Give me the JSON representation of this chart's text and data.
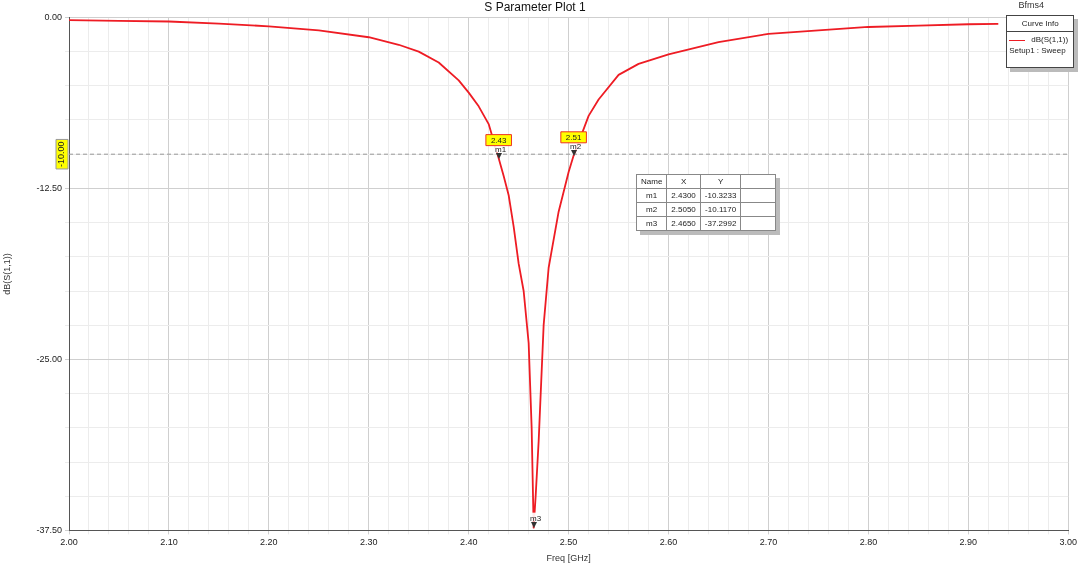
{
  "chart_data": {
    "type": "line",
    "title": "S Parameter Plot 1",
    "xlabel": "Freq [GHz]",
    "ylabel": "dB(S(1,1))",
    "legend_title": "Curve Info",
    "legend": "top right",
    "grid": true,
    "xlim": [
      2.0,
      3.0
    ],
    "ylim": [
      -37.5,
      0
    ],
    "xticks": [
      {
        "value": 2.0,
        "label": "2.00"
      },
      {
        "value": 2.02,
        "label": null
      },
      {
        "value": 2.04,
        "label": null
      },
      {
        "value": 2.06,
        "label": null
      },
      {
        "value": 2.08,
        "label": null
      },
      {
        "value": 2.1,
        "label": "2.10"
      },
      {
        "value": 2.12,
        "label": null
      },
      {
        "value": 2.14,
        "label": null
      },
      {
        "value": 2.16,
        "label": null
      },
      {
        "value": 2.18,
        "label": null
      },
      {
        "value": 2.2,
        "label": "2.20"
      },
      {
        "value": 2.22,
        "label": null
      },
      {
        "value": 2.24,
        "label": null
      },
      {
        "value": 2.26,
        "label": null
      },
      {
        "value": 2.28,
        "label": null
      },
      {
        "value": 2.3,
        "label": "2.30"
      },
      {
        "value": 2.32,
        "label": null
      },
      {
        "value": 2.34,
        "label": null
      },
      {
        "value": 2.36,
        "label": null
      },
      {
        "value": 2.38,
        "label": null
      },
      {
        "value": 2.4,
        "label": "2.40"
      },
      {
        "value": 2.42,
        "label": null
      },
      {
        "value": 2.44,
        "label": null
      },
      {
        "value": 2.46,
        "label": null
      },
      {
        "value": 2.48,
        "label": null
      },
      {
        "value": 2.5,
        "label": "2.50"
      },
      {
        "value": 2.52,
        "label": null
      },
      {
        "value": 2.54,
        "label": null
      },
      {
        "value": 2.56,
        "label": null
      },
      {
        "value": 2.58,
        "label": null
      },
      {
        "value": 2.6,
        "label": "2.60"
      },
      {
        "value": 2.62,
        "label": null
      },
      {
        "value": 2.64,
        "label": null
      },
      {
        "value": 2.66,
        "label": null
      },
      {
        "value": 2.68,
        "label": null
      },
      {
        "value": 2.7,
        "label": "2.70"
      },
      {
        "value": 2.72,
        "label": null
      },
      {
        "value": 2.74,
        "label": null
      },
      {
        "value": 2.76,
        "label": null
      },
      {
        "value": 2.78,
        "label": null
      },
      {
        "value": 2.8,
        "label": "2.80"
      },
      {
        "value": 2.82,
        "label": null
      },
      {
        "value": 2.84,
        "label": null
      },
      {
        "value": 2.86,
        "label": null
      },
      {
        "value": 2.88,
        "label": null
      },
      {
        "value": 2.9,
        "label": "2.90"
      },
      {
        "value": 2.92,
        "label": null
      },
      {
        "value": 2.94,
        "label": null
      },
      {
        "value": 2.96,
        "label": null
      },
      {
        "value": 2.98,
        "label": null
      },
      {
        "value": 3.0,
        "label": "3.00"
      }
    ],
    "yticks": [
      {
        "value": -37.5,
        "label": "-37.50"
      },
      {
        "value": -35,
        "label": null
      },
      {
        "value": -32.5,
        "label": null
      },
      {
        "value": -30,
        "label": null
      },
      {
        "value": -27.5,
        "label": null
      },
      {
        "value": -25,
        "label": "-25.00"
      },
      {
        "value": -22.5,
        "label": null
      },
      {
        "value": -20,
        "label": null
      },
      {
        "value": -17.5,
        "label": null
      },
      {
        "value": -15,
        "label": null
      },
      {
        "value": -12.5,
        "label": "-12.50"
      },
      {
        "value": -10,
        "label": null
      },
      {
        "value": -7.5,
        "label": null
      },
      {
        "value": -5,
        "label": null
      },
      {
        "value": -2.5,
        "label": null
      },
      {
        "value": 0,
        "label": "0.00"
      }
    ],
    "series": [
      {
        "name": "dB(S(1,1))",
        "color": "#ee1c24",
        "x": [
          2.0,
          2.05,
          2.1,
          2.15,
          2.2,
          2.25,
          2.3,
          2.33,
          2.35,
          2.37,
          2.39,
          2.4,
          2.41,
          2.42,
          2.43,
          2.435,
          2.44,
          2.445,
          2.45,
          2.455,
          2.46,
          2.463,
          2.465,
          2.467,
          2.47,
          2.475,
          2.48,
          2.49,
          2.5,
          2.505,
          2.52,
          2.53,
          2.55,
          2.57,
          2.6,
          2.65,
          2.7,
          2.75,
          2.8,
          2.85,
          2.9,
          2.93
        ],
        "values": [
          -0.2,
          -0.25,
          -0.3,
          -0.45,
          -0.65,
          -0.95,
          -1.45,
          -2.0,
          -2.5,
          -3.3,
          -4.6,
          -5.5,
          -6.5,
          -7.8,
          -10.3,
          -11.6,
          -13.0,
          -15.3,
          -18.0,
          -20.0,
          -23.8,
          -30.0,
          -37.3,
          -35.0,
          -31.0,
          -22.5,
          -18.3,
          -14.2,
          -11.3,
          -10.1,
          -7.2,
          -6.0,
          -4.2,
          -3.4,
          -2.7,
          -1.8,
          -1.2,
          -0.95,
          -0.7,
          -0.6,
          -0.5,
          -0.48
        ]
      }
    ],
    "ref_lines": [
      {
        "axis": "y",
        "value": -10,
        "label": "-10.00"
      }
    ],
    "annotations": [
      "Bfms4",
      "Setup1 : Sweep",
      "Name",
      "X",
      "Y",
      "m1",
      "2.4300",
      "-10.3233",
      "m2",
      "2.5050",
      "-10.1170",
      "m3",
      "2.4650",
      "-37.2992",
      {
        "text": "m1",
        "x": 2.43,
        "y": -10.3233
      },
      {
        "text": "m2",
        "x": 2.505,
        "y": -10.117
      },
      {
        "text": "m3",
        "x": 2.465,
        "y": -37.2992
      },
      {
        "text": "2.43",
        "x": 2.43,
        "y": -10.3233
      },
      {
        "text": "2.51",
        "x": 2.505,
        "y": -10.117
      }
    ]
  }
}
